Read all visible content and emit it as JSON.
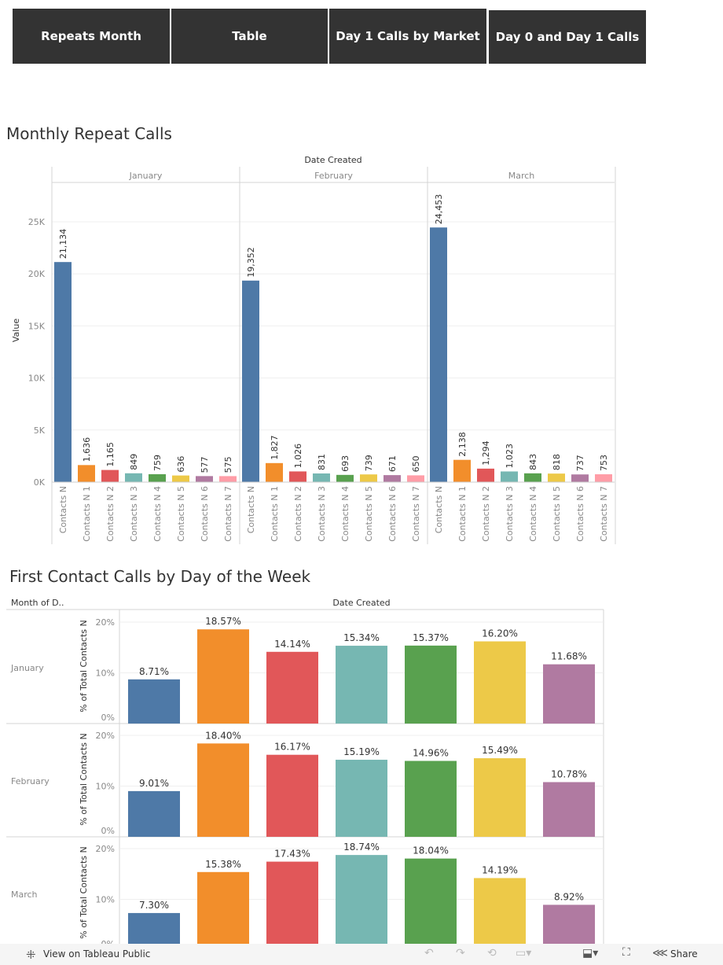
{
  "nav": [
    "Repeats Month",
    "Table",
    "Day 1 Calls by Market",
    "Day 0 and Day 1 Calls"
  ],
  "colors": [
    "#4e79a7",
    "#f28e2b",
    "#e15759",
    "#76b7b2",
    "#59a14f",
    "#edc948",
    "#b07aa1",
    "#ff9da7"
  ],
  "chart_data": [
    {
      "type": "bar",
      "title": "Monthly Repeat Calls",
      "column_header": "Date Created",
      "ylabel": "Value",
      "ylim": [
        0,
        28000
      ],
      "yticks": [
        "0K",
        "5K",
        "10K",
        "15K",
        "20K",
        "25K"
      ],
      "grid": true,
      "panels": [
        "January",
        "February",
        "March"
      ],
      "categories": [
        "Contacts N",
        "Contacts N 1",
        "Contacts N 2",
        "Contacts N 3",
        "Contacts N 4",
        "Contacts N 5",
        "Contacts N 6",
        "Contacts N 7"
      ],
      "series": [
        {
          "values": [
            21134,
            1636,
            1165,
            849,
            759,
            636,
            577,
            575
          ],
          "labels": [
            "21,134",
            "1,636",
            "1,165",
            "849",
            "759",
            "636",
            "577",
            "575"
          ]
        },
        {
          "values": [
            19352,
            1827,
            1026,
            831,
            693,
            739,
            671,
            650
          ],
          "labels": [
            "19,352",
            "1,827",
            "1,026",
            "831",
            "693",
            "739",
            "671",
            "650"
          ]
        },
        {
          "values": [
            24453,
            2138,
            1294,
            1023,
            843,
            818,
            737,
            753
          ],
          "labels": [
            "24,453",
            "2,138",
            "1,294",
            "1,023",
            "843",
            "818",
            "737",
            "753"
          ]
        }
      ]
    },
    {
      "type": "bar",
      "title": "First Contact Calls by Day of the Week",
      "row_header": "Month of D..",
      "column_header": "Date Created",
      "ylabel": "% of Total Contacts N",
      "yticks": [
        "0%",
        "10%",
        "20%"
      ],
      "grid": true,
      "rows": [
        "January",
        "February",
        "March"
      ],
      "series": [
        {
          "values": [
            8.71,
            18.57,
            14.14,
            15.34,
            15.37,
            16.2,
            11.68
          ],
          "labels": [
            "8.71%",
            "18.57%",
            "14.14%",
            "15.34%",
            "15.37%",
            "16.20%",
            "11.68%"
          ]
        },
        {
          "values": [
            9.01,
            18.4,
            16.17,
            15.19,
            14.96,
            15.49,
            10.78
          ],
          "labels": [
            "9.01%",
            "18.40%",
            "16.17%",
            "15.19%",
            "14.96%",
            "15.49%",
            "10.78%"
          ]
        },
        {
          "values": [
            7.3,
            15.38,
            17.43,
            18.74,
            18.04,
            14.19,
            8.92
          ],
          "labels": [
            "7.30%",
            "15.38%",
            "17.43%",
            "18.74%",
            "18.04%",
            "14.19%",
            "8.92%"
          ]
        }
      ]
    }
  ],
  "footer": {
    "view_label": "View on Tableau Public",
    "share_label": "Share"
  }
}
